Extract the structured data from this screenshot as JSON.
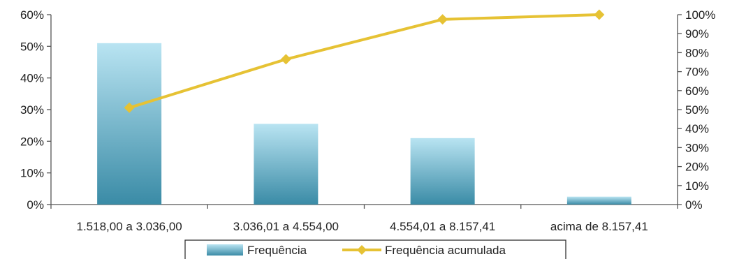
{
  "chart_data": {
    "type": "bar",
    "categories": [
      "1.518,00 a 3.036,00",
      "3.036,01 a 4.554,00",
      "4.554,01 a 8.157,41",
      "acima de 8.157,41"
    ],
    "series": [
      {
        "name": "Frequência",
        "type": "bar",
        "axis": "left",
        "values": [
          51,
          25.5,
          21,
          2.5
        ]
      },
      {
        "name": "Frequência acumulada",
        "type": "line",
        "axis": "right",
        "values": [
          51,
          76.5,
          97.5,
          100
        ]
      }
    ],
    "y_left": {
      "range": [
        0,
        60
      ],
      "ticks": [
        "0%",
        "10%",
        "20%",
        "30%",
        "40%",
        "50%",
        "60%"
      ]
    },
    "y_right": {
      "range": [
        0,
        100
      ],
      "ticks": [
        "0%",
        "10%",
        "20%",
        "30%",
        "40%",
        "50%",
        "60%",
        "70%",
        "80%",
        "90%",
        "100%"
      ]
    },
    "grid": false,
    "legend": "bottom",
    "colors": {
      "bar_top": "#b9e4f2",
      "bar_bottom": "#3a8ba6",
      "line": "#e6c234",
      "marker": "#e6c234"
    }
  }
}
